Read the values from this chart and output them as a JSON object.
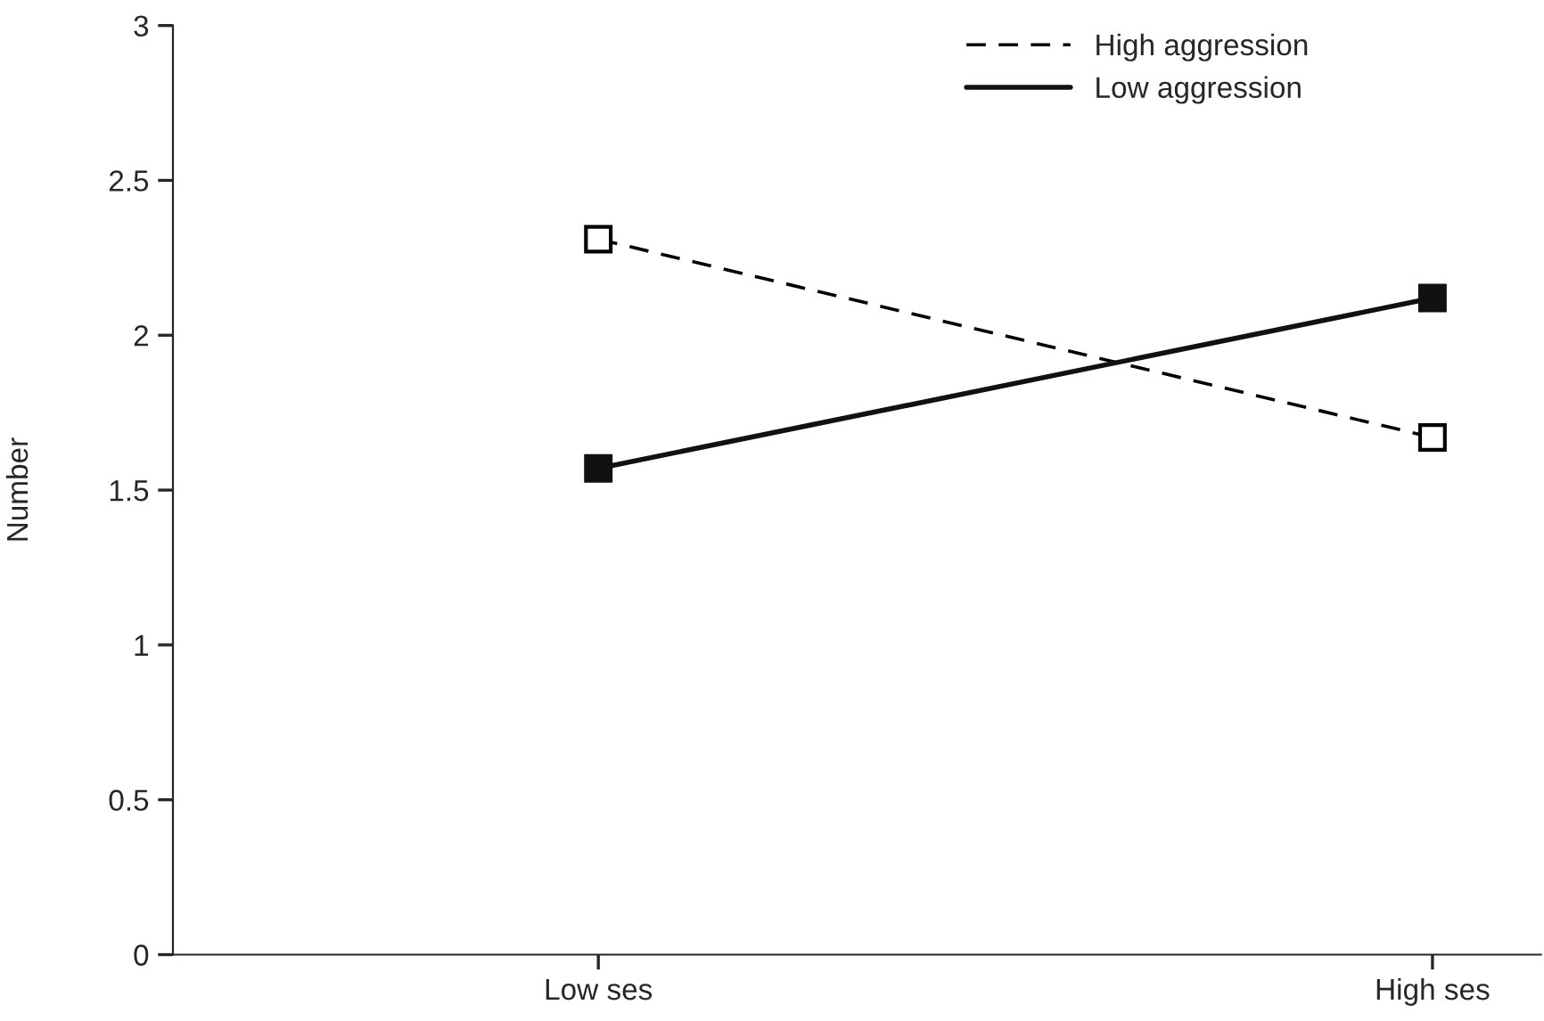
{
  "chart_data": {
    "type": "line",
    "ylabel": "Number",
    "categories": [
      "Low ses",
      "High ses"
    ],
    "series": [
      {
        "name": "High aggression",
        "color": "#000000",
        "values": [
          2.31,
          1.67
        ],
        "line_style": "dashed",
        "marker": "square"
      },
      {
        "name": "Low aggression",
        "color": "#111111",
        "values": [
          1.57,
          2.12
        ],
        "line_style": "solid",
        "marker": "square"
      }
    ],
    "ylim": [
      0,
      3
    ],
    "yticks": [
      0,
      0.5,
      1,
      1.5,
      2,
      2.5,
      3
    ],
    "grid": false,
    "legend": "top right"
  }
}
